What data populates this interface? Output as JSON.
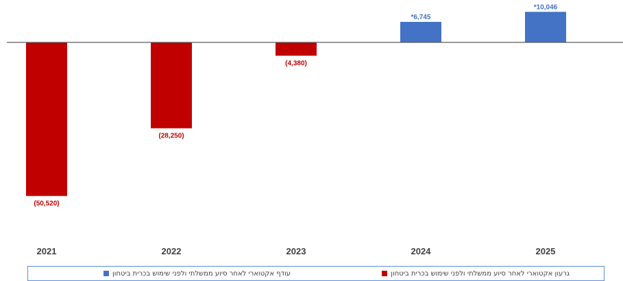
{
  "chart_data": {
    "type": "bar",
    "categories": [
      "2021",
      "2022",
      "2023",
      "2024",
      "2025"
    ],
    "values": [
      -50520,
      -28250,
      -4380,
      6745,
      10046
    ],
    "data_labels": [
      "(50,520)",
      "(28,250)",
      "(4,380)",
      "*6,745",
      "*10,046"
    ],
    "series": [
      {
        "name": "עודף אקטוארי לאחר סיוע ממשלתי ולפני שימוש בכרית ביטחון",
        "color": "#4472c4",
        "sign": "positive"
      },
      {
        "name": "גרעון אקטוארי לאחר סיוע ממשלתי ולפני שימוש בכרית ביטחון",
        "color": "#c00000",
        "sign": "negative"
      }
    ],
    "legend_position": "bottom",
    "grid": false,
    "ylim": [
      -56000,
      11000
    ]
  }
}
